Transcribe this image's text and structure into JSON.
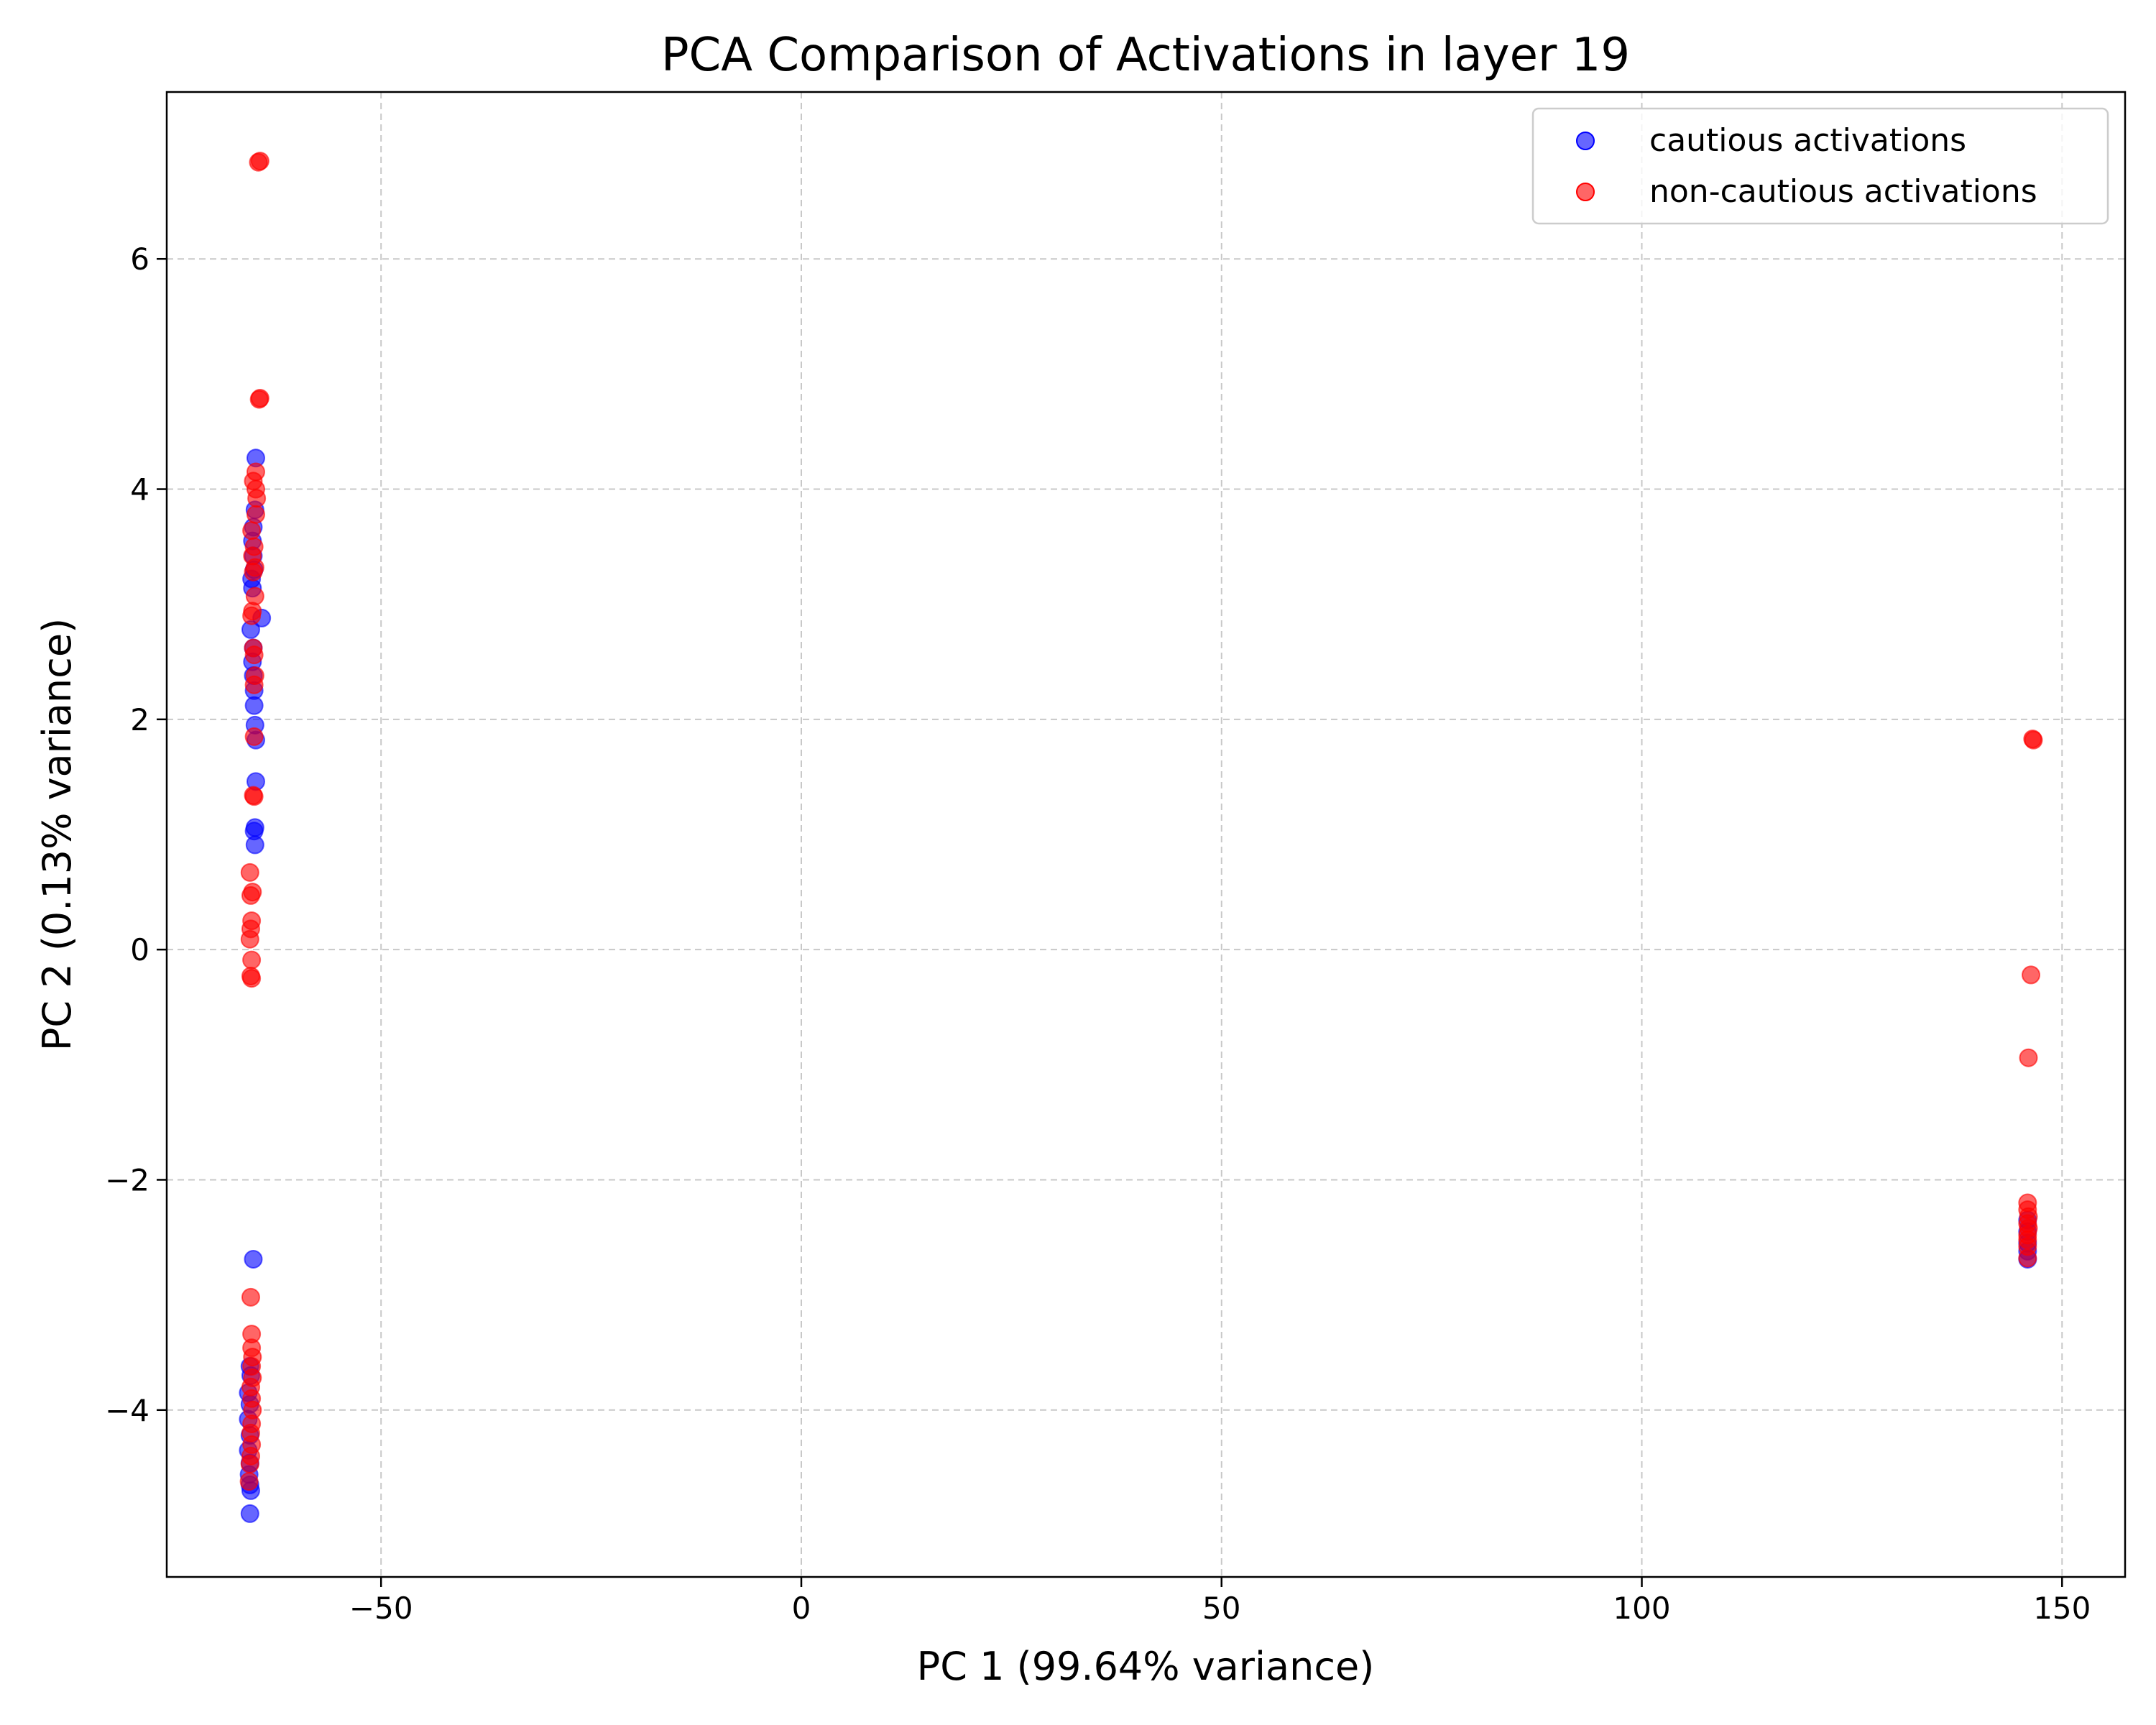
{
  "chart_data": {
    "type": "scatter",
    "title": "PCA Comparison of Activations in layer 19",
    "xlabel": "PC 1 (99.64% variance)",
    "ylabel": "PC 2 (0.13% variance)",
    "xlim": [
      -75.5,
      157.5
    ],
    "ylim": [
      -5.45,
      7.45
    ],
    "xticks": [
      -50,
      0,
      50,
      100,
      150
    ],
    "yticks": [
      -4,
      -2,
      0,
      2,
      4,
      6
    ],
    "xtick_labels": [
      "−50",
      "0",
      "50",
      "100",
      "150"
    ],
    "ytick_labels": [
      "−4",
      "−2",
      "0",
      "2",
      "4",
      "6"
    ],
    "grid": true,
    "legend_position": "top-right",
    "series": [
      {
        "name": "cautious activations",
        "color": "#0000ff",
        "points": [
          [
            -64.9,
            4.27
          ],
          [
            -65.0,
            3.82
          ],
          [
            -65.2,
            3.67
          ],
          [
            -65.3,
            3.55
          ],
          [
            -65.2,
            3.42
          ],
          [
            -65.1,
            3.3
          ],
          [
            -65.4,
            3.22
          ],
          [
            -65.3,
            3.14
          ],
          [
            -64.2,
            2.88
          ],
          [
            -65.5,
            2.78
          ],
          [
            -65.2,
            2.62
          ],
          [
            -65.3,
            2.5
          ],
          [
            -65.2,
            2.38
          ],
          [
            -65.1,
            2.25
          ],
          [
            -65.1,
            2.12
          ],
          [
            -65.0,
            1.95
          ],
          [
            -64.9,
            1.82
          ],
          [
            -64.9,
            1.46
          ],
          [
            -65.0,
            1.06
          ],
          [
            -65.1,
            1.03
          ],
          [
            -65.0,
            0.91
          ],
          [
            -65.2,
            -2.69
          ],
          [
            -65.6,
            -3.62
          ],
          [
            -65.5,
            -3.7
          ],
          [
            -65.8,
            -3.85
          ],
          [
            -65.6,
            -3.95
          ],
          [
            -65.8,
            -4.08
          ],
          [
            -65.6,
            -4.22
          ],
          [
            -65.8,
            -4.35
          ],
          [
            -65.6,
            -4.46
          ],
          [
            -65.7,
            -4.56
          ],
          [
            -65.6,
            -4.65
          ],
          [
            -65.5,
            -4.7
          ],
          [
            -65.6,
            -4.9
          ],
          [
            145.9,
            -2.35
          ],
          [
            145.9,
            -2.45
          ],
          [
            145.9,
            -2.55
          ],
          [
            145.9,
            -2.62
          ],
          [
            145.9,
            -2.69
          ]
        ]
      },
      {
        "name": "non-cautious activations",
        "color": "#ff0000",
        "points": [
          [
            -64.6,
            6.84
          ],
          [
            -64.4,
            6.85
          ],
          [
            -64.4,
            4.79
          ],
          [
            -64.5,
            4.78
          ],
          [
            -64.9,
            4.15
          ],
          [
            -65.2,
            4.07
          ],
          [
            -64.9,
            4.0
          ],
          [
            -64.8,
            3.92
          ],
          [
            -64.9,
            3.78
          ],
          [
            -65.4,
            3.64
          ],
          [
            -65.1,
            3.5
          ],
          [
            -65.3,
            3.42
          ],
          [
            -65.0,
            3.32
          ],
          [
            -65.2,
            3.28
          ],
          [
            -65.0,
            3.07
          ],
          [
            -65.3,
            2.94
          ],
          [
            -65.4,
            2.9
          ],
          [
            -65.2,
            2.62
          ],
          [
            -65.1,
            2.56
          ],
          [
            -65.0,
            2.38
          ],
          [
            -65.1,
            2.3
          ],
          [
            -65.1,
            1.85
          ],
          [
            -65.2,
            1.34
          ],
          [
            -65.1,
            1.33
          ],
          [
            -65.6,
            0.67
          ],
          [
            -65.3,
            0.5
          ],
          [
            -65.5,
            0.47
          ],
          [
            -65.4,
            0.25
          ],
          [
            -65.5,
            0.18
          ],
          [
            -65.6,
            0.09
          ],
          [
            -65.4,
            -0.09
          ],
          [
            -65.5,
            -0.23
          ],
          [
            -65.4,
            -0.25
          ],
          [
            -65.5,
            -3.02
          ],
          [
            -65.4,
            -3.34
          ],
          [
            -65.4,
            -3.46
          ],
          [
            -65.3,
            -3.54
          ],
          [
            -65.4,
            -3.62
          ],
          [
            -65.3,
            -3.72
          ],
          [
            -65.5,
            -3.8
          ],
          [
            -65.4,
            -3.9
          ],
          [
            -65.3,
            -4.0
          ],
          [
            -65.4,
            -4.12
          ],
          [
            -65.5,
            -4.2
          ],
          [
            -65.4,
            -4.3
          ],
          [
            -65.5,
            -4.4
          ],
          [
            -65.6,
            -4.47
          ],
          [
            -65.7,
            -4.62
          ],
          [
            146.5,
            1.83
          ],
          [
            146.6,
            1.82
          ],
          [
            146.3,
            -0.22
          ],
          [
            146.0,
            -0.94
          ],
          [
            145.9,
            -2.2
          ],
          [
            145.9,
            -2.26
          ],
          [
            146.0,
            -2.32
          ],
          [
            145.9,
            -2.38
          ],
          [
            146.0,
            -2.42
          ],
          [
            145.9,
            -2.48
          ],
          [
            145.9,
            -2.52
          ],
          [
            145.9,
            -2.58
          ],
          [
            145.9,
            -2.68
          ]
        ]
      }
    ]
  }
}
